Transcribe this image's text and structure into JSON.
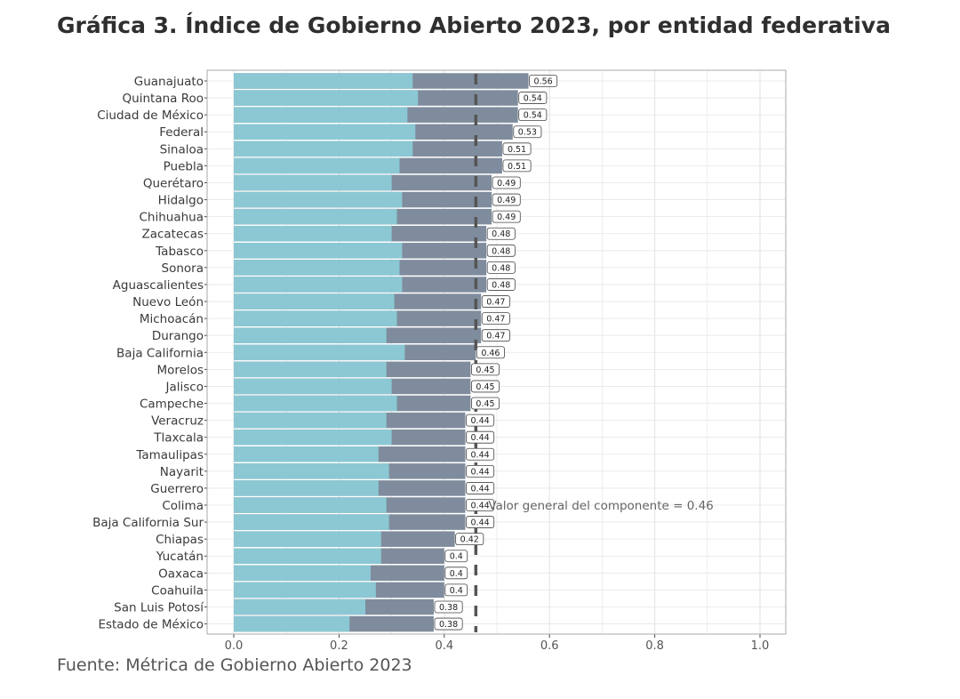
{
  "title": "Gráfica 3. Índice de Gobierno Abierto 2023, por entidad federativa",
  "source": "Fuente: Métrica de Gobierno Abierto 2023",
  "colors": {
    "bar_inner": "#8bc8d3",
    "bar_outer": "#7f8c9d",
    "ref_line": "#555555",
    "grid": "#e6e6e6",
    "panel_border": "#aaaaaa"
  },
  "chart_data": {
    "type": "bar",
    "orientation": "horizontal",
    "stacked": true,
    "categories": [
      "Guanajuato",
      "Quintana Roo",
      "Ciudad de México",
      "Federal",
      "Sinaloa",
      "Puebla",
      "Querétaro",
      "Hidalgo",
      "Chihuahua",
      "Zacatecas",
      "Tabasco",
      "Sonora",
      "Aguascalientes",
      "Nuevo León",
      "Michoacán",
      "Durango",
      "Baja California",
      "Morelos",
      "Jalisco",
      "Campeche",
      "Veracruz",
      "Tlaxcala",
      "Tamaulipas",
      "Nayarit",
      "Guerrero",
      "Colima",
      "Baja California Sur",
      "Chiapas",
      "Yucatán",
      "Oaxaca",
      "Coahuila",
      "San Luis Potosí",
      "Estado de México"
    ],
    "values": [
      0.56,
      0.54,
      0.54,
      0.53,
      0.51,
      0.51,
      0.49,
      0.49,
      0.49,
      0.48,
      0.48,
      0.48,
      0.48,
      0.47,
      0.47,
      0.47,
      0.46,
      0.45,
      0.45,
      0.45,
      0.44,
      0.44,
      0.44,
      0.44,
      0.44,
      0.44,
      0.44,
      0.42,
      0.4,
      0.4,
      0.4,
      0.38,
      0.38
    ],
    "inner_values": [
      0.34,
      0.35,
      0.33,
      0.345,
      0.34,
      0.315,
      0.3,
      0.32,
      0.31,
      0.3,
      0.32,
      0.315,
      0.32,
      0.305,
      0.31,
      0.29,
      0.325,
      0.29,
      0.3,
      0.31,
      0.29,
      0.3,
      0.275,
      0.295,
      0.275,
      0.29,
      0.295,
      0.28,
      0.28,
      0.26,
      0.27,
      0.25,
      0.22
    ],
    "data_labels": [
      "0.56",
      "0.54",
      "0.54",
      "0.53",
      "0.51",
      "0.51",
      "0.49",
      "0.49",
      "0.49",
      "0.48",
      "0.48",
      "0.48",
      "0.48",
      "0.47",
      "0.47",
      "0.47",
      "0.46",
      "0.45",
      "0.45",
      "0.45",
      "0.44",
      "0.44",
      "0.44",
      "0.44",
      "0.44",
      "0.44",
      "0.44",
      "0.42",
      "0.4",
      "0.4",
      "0.4",
      "0.38",
      "0.38"
    ],
    "reference_value": 0.46,
    "reference_label": "Valor general del componente = 0.46",
    "xlim": [
      0,
      1
    ],
    "xticks": [
      0.0,
      0.2,
      0.4,
      0.6,
      0.8,
      1.0
    ],
    "xtick_labels": [
      "0.0",
      "0.2",
      "0.4",
      "0.6",
      "0.8",
      "1.0"
    ],
    "grid": true
  }
}
